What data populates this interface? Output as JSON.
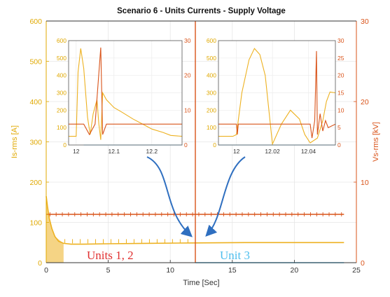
{
  "chart_data": {
    "type": "line",
    "title": "Scenario 6 - Units Currents - Supply Voltage",
    "xlabel": "Time [Sec]",
    "ylabel_left": "Is-rms [A]",
    "ylabel_right": "Vs-rms [kV]",
    "xlim": [
      0,
      25
    ],
    "ylim_left": [
      0,
      600
    ],
    "ylim_right": [
      0,
      30
    ],
    "x_ticks": [
      "0",
      "5",
      "10",
      "15",
      "20",
      "25"
    ],
    "y_ticks_left": [
      "0",
      "100",
      "200",
      "300",
      "400",
      "500",
      "600"
    ],
    "y_ticks_right": [
      "0",
      "10",
      "20",
      "30"
    ],
    "grid": true,
    "colors": {
      "current": "#EDB120",
      "voltage": "#D95319",
      "unit3": "#4DBEEE",
      "units12_label": "#E03030",
      "unit3_label": "#4DBEEE",
      "arrow": "#2F6FC0",
      "left_axis": "#E0A800",
      "right_axis": "#D95319"
    },
    "series": [
      {
        "axis": "left",
        "color": "#EDB120",
        "points": [
          [
            0,
            165
          ],
          [
            0.1,
            140
          ],
          [
            0.25,
            110
          ],
          [
            0.45,
            85
          ],
          [
            0.7,
            65
          ],
          [
            1.0,
            53
          ],
          [
            1.4,
            48
          ],
          [
            2,
            46
          ],
          [
            3,
            46
          ],
          [
            5,
            47
          ],
          [
            8,
            48
          ],
          [
            12,
            49
          ],
          [
            16,
            50
          ],
          [
            20,
            50
          ],
          [
            24,
            50
          ]
        ]
      },
      {
        "axis": "right",
        "color": "#D95319",
        "points": [
          [
            0,
            6
          ],
          [
            24,
            6
          ]
        ]
      },
      {
        "axis": "left",
        "color": "#4DBEEE",
        "points": [
          [
            12.02,
            0
          ],
          [
            24,
            0
          ]
        ]
      }
    ],
    "annotations": [
      {
        "text": "Units 1, 2",
        "color": "#E03030"
      },
      {
        "text": "Unit 3",
        "color": "#4DBEEE"
      }
    ],
    "insets": [
      {
        "xlim": [
          11.98,
          12.28
        ],
        "ylim_left": [
          0,
          600
        ],
        "ylim_right": [
          0,
          30
        ],
        "x_ticks": [
          "12",
          "12.1",
          "12.2"
        ],
        "y_ticks_left": [
          "0",
          "100",
          "200",
          "300",
          "400",
          "500",
          "600"
        ],
        "y_ticks_right": [
          "0",
          "10",
          "20",
          "30"
        ],
        "series": [
          {
            "axis": "left",
            "color": "#EDB120",
            "points": [
              [
                11.98,
                50
              ],
              [
                12.0,
                50
              ],
              [
                12.005,
                420
              ],
              [
                12.012,
                555
              ],
              [
                12.02,
                440
              ],
              [
                12.03,
                160
              ],
              [
                12.037,
                60
              ],
              [
                12.045,
                180
              ],
              [
                12.055,
                260
              ],
              [
                12.06,
                120
              ],
              [
                12.065,
                30
              ],
              [
                12.07,
                300
              ],
              [
                12.08,
                260
              ],
              [
                12.1,
                215
              ],
              [
                12.12,
                190
              ],
              [
                12.15,
                150
              ],
              [
                12.18,
                115
              ],
              [
                12.2,
                92
              ],
              [
                12.23,
                72
              ],
              [
                12.25,
                55
              ],
              [
                12.28,
                50
              ]
            ]
          },
          {
            "axis": "right",
            "color": "#D95319",
            "points": [
              [
                11.98,
                6
              ],
              [
                12.02,
                6
              ],
              [
                12.035,
                3
              ],
              [
                12.05,
                6
              ],
              [
                12.065,
                28
              ],
              [
                12.07,
                3
              ],
              [
                12.08,
                6
              ],
              [
                12.28,
                6
              ]
            ]
          },
          {
            "axis": "left",
            "color": "#4DBEEE",
            "points": [
              [
                12.02,
                0
              ],
              [
                12.28,
                0
              ]
            ]
          }
        ]
      },
      {
        "xlim": [
          11.99,
          12.055
        ],
        "ylim_left": [
          0,
          600
        ],
        "ylim_right": [
          0,
          30
        ],
        "x_ticks": [
          "12",
          "12.02",
          "12.04"
        ],
        "y_ticks_left": [
          "0",
          "100",
          "200",
          "300",
          "400",
          "500",
          "600"
        ],
        "y_ticks_right": [
          "0",
          "5",
          "10",
          "15",
          "20",
          "25",
          "30"
        ],
        "series": [
          {
            "axis": "left",
            "color": "#EDB120",
            "points": [
              [
                11.99,
                50
              ],
              [
                11.995,
                50
              ],
              [
                11.998,
                50
              ],
              [
                12.0,
                60
              ],
              [
                12.003,
                300
              ],
              [
                12.007,
                490
              ],
              [
                12.01,
                555
              ],
              [
                12.013,
                520
              ],
              [
                12.016,
                400
              ],
              [
                12.02,
                5
              ],
              [
                12.025,
                120
              ],
              [
                12.03,
                200
              ],
              [
                12.035,
                150
              ],
              [
                12.038,
                60
              ],
              [
                12.041,
                12
              ],
              [
                12.045,
                40
              ],
              [
                12.048,
                140
              ],
              [
                12.05,
                250
              ],
              [
                12.052,
                305
              ],
              [
                12.055,
                300
              ]
            ]
          },
          {
            "axis": "right",
            "color": "#D95319",
            "points": [
              [
                11.99,
                6
              ],
              [
                12.0,
                6
              ],
              [
                12.0005,
                3
              ],
              [
                12.001,
                6
              ],
              [
                12.041,
                6
              ],
              [
                12.042,
                2
              ],
              [
                12.0435,
                7
              ],
              [
                12.0445,
                27
              ],
              [
                12.045,
                3
              ],
              [
                12.0465,
                9
              ],
              [
                12.048,
                4
              ],
              [
                12.0495,
                7
              ],
              [
                12.051,
                5
              ],
              [
                12.055,
                6
              ]
            ]
          },
          {
            "axis": "left",
            "color": "#4DBEEE",
            "points": [
              [
                11.99,
                0
              ],
              [
                12.055,
                0
              ]
            ]
          }
        ]
      }
    ]
  }
}
